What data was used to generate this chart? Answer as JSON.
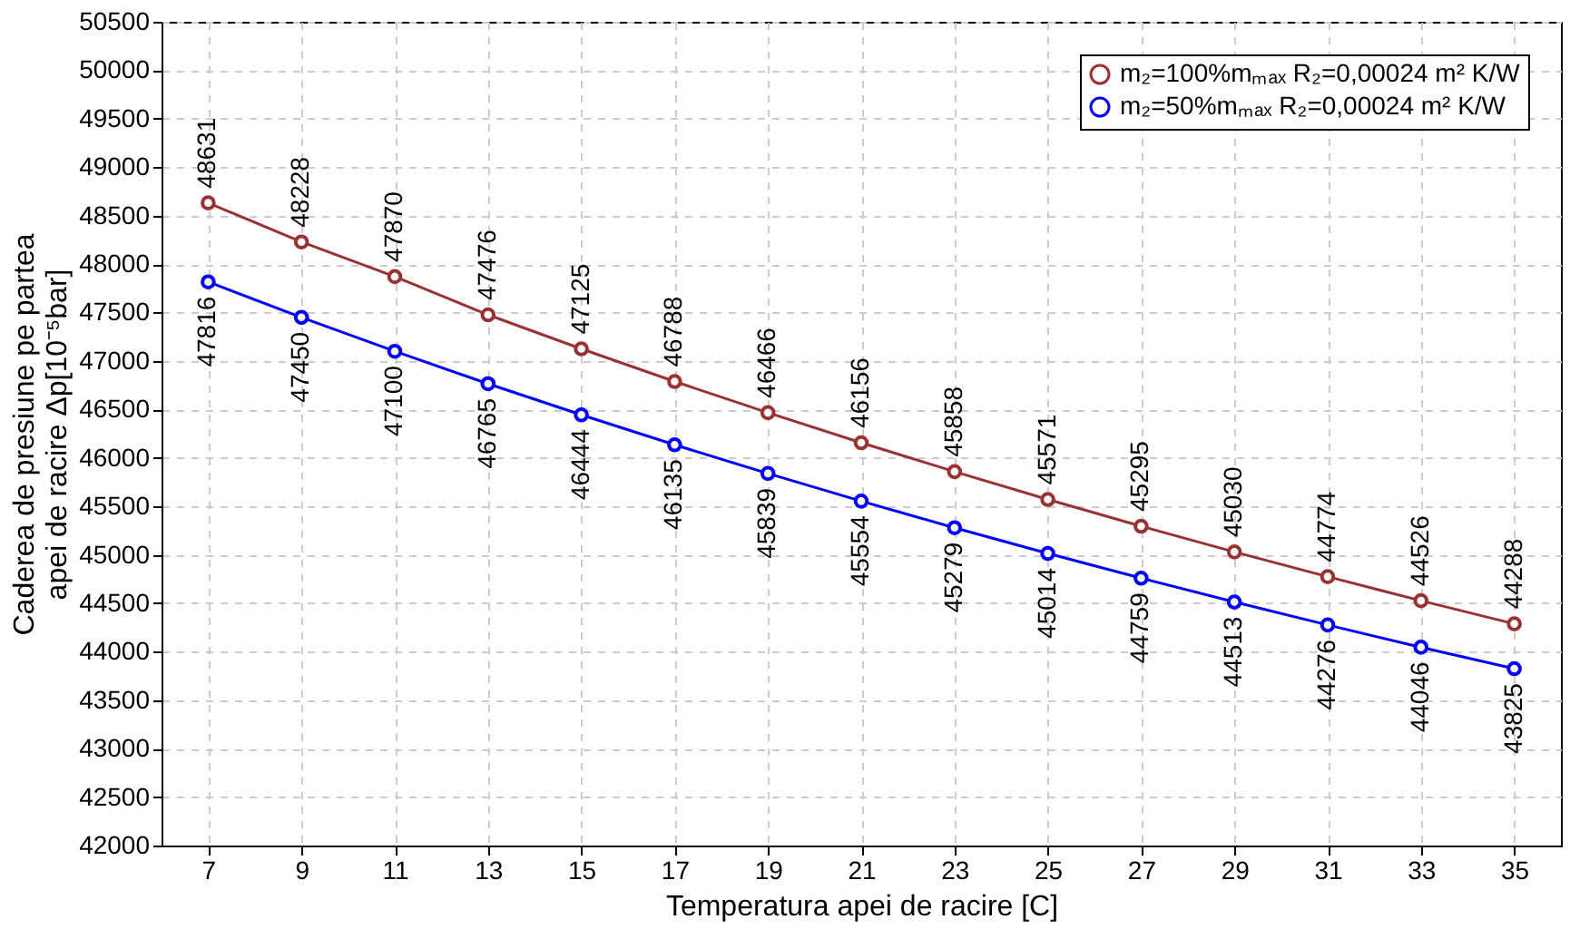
{
  "chart_data": {
    "type": "line",
    "xlabel": "Temperatura apei de racire [C]",
    "ylabel": "Caderea de presiune pe partea\napei de racire  Δp[10⁻⁵bar]",
    "categories": [
      "7",
      "9",
      "11",
      "13",
      "15",
      "17",
      "19",
      "21",
      "23",
      "25",
      "27",
      "29",
      "31",
      "33",
      "35"
    ],
    "series": [
      {
        "name": "m₂=100%mₘₐₓ R₂=0,00024 m² K/W",
        "color": "#993333",
        "values": [
          48631,
          48228,
          47870,
          47476,
          47125,
          46788,
          46466,
          46156,
          45858,
          45571,
          45295,
          45030,
          44774,
          44526,
          44288
        ]
      },
      {
        "name": "m₂=50%mₘₐₓ R₂=0,00024 m² K/W",
        "color": "#0000ff",
        "values": [
          47816,
          47450,
          47100,
          46765,
          46444,
          46135,
          45839,
          45554,
          45279,
          45014,
          44759,
          44513,
          44276,
          44046,
          43825
        ]
      }
    ],
    "ylim": [
      42000,
      50500
    ],
    "yticks": [
      42000,
      42500,
      43000,
      43500,
      44000,
      44500,
      45000,
      45500,
      46000,
      46500,
      47000,
      47500,
      48000,
      48500,
      49000,
      49500,
      50000,
      50500
    ],
    "grid": true,
    "legend": "top right",
    "marker": "circle",
    "line_style": "solid",
    "data_labels": true
  }
}
